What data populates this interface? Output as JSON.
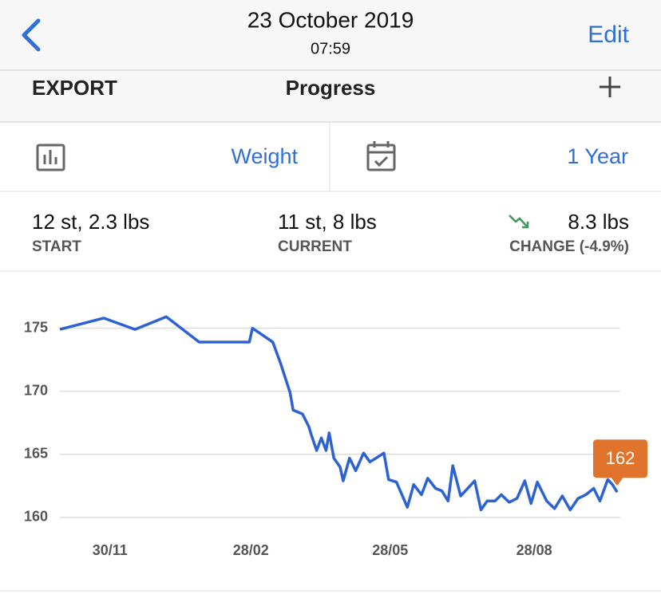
{
  "header": {
    "date": "23 October 2019",
    "time": "07:59",
    "edit": "Edit"
  },
  "toolbar": {
    "export": "EXPORT",
    "title": "Progress"
  },
  "selectors": {
    "metric": "Weight",
    "period": "1 Year"
  },
  "stats": [
    {
      "value": "12 st, 2.3 lbs",
      "label": "START"
    },
    {
      "value": "11 st, 8 lbs",
      "label": "CURRENT"
    },
    {
      "value": "8.3 lbs",
      "label": "CHANGE (-4.9%)"
    }
  ],
  "chart_data": {
    "type": "line",
    "x": [
      "29/10",
      "26/11",
      "16/12",
      "05/01",
      "26/01",
      "27/02",
      "01/03",
      "14/03",
      "19/03",
      "25/03",
      "27/03",
      "02/04",
      "06/04",
      "08/04",
      "11/04",
      "14/04",
      "17/04",
      "19/04",
      "22/04",
      "26/04",
      "28/04",
      "02/05",
      "06/05",
      "11/05",
      "15/05",
      "19/05",
      "24/05",
      "27/05",
      "01/06",
      "08/06",
      "12/06",
      "17/06",
      "21/06",
      "26/06",
      "30/06",
      "04/07",
      "07/07",
      "12/07",
      "18/07",
      "21/07",
      "25/07",
      "29/07",
      "03/08",
      "07/08",
      "12/08",
      "17/08",
      "22/08",
      "26/08",
      "30/08",
      "05/09",
      "10/09",
      "15/09",
      "20/09",
      "25/09",
      "30/09",
      "05/10",
      "09/10",
      "14/10",
      "17/10",
      "20/10"
    ],
    "series": [
      {
        "color": "#2d62d2",
        "values": [
          174.9,
          175.8,
          174.9,
          175.9,
          173.9,
          173.9,
          175,
          173.9,
          172.2,
          169.9,
          168.5,
          168.2,
          167.2,
          166.4,
          165.3,
          166.3,
          165.3,
          166.7,
          164.7,
          164,
          162.9,
          164.7,
          163.7,
          165.1,
          164.4,
          164.7,
          165.1,
          163,
          162.8,
          160.8,
          162.6,
          161.8,
          163.1,
          162.3,
          162.1,
          161.3,
          164.1,
          161.7,
          162.5,
          162.9,
          160.6,
          161.3,
          161.3,
          161.8,
          161.2,
          161.5,
          162.9,
          161.1,
          162.8,
          161.3,
          160.7,
          161.7,
          160.6,
          161.5,
          161.8,
          162.3,
          161.3,
          163,
          162.6,
          162
        ]
      }
    ],
    "xlim": [
      "29/10",
      "22/10"
    ],
    "xticks": [
      "30/11",
      "28/02",
      "28/05",
      "28/08"
    ],
    "ylim": [
      158.6,
      177.5
    ],
    "yticks": [
      160,
      165,
      170,
      175
    ],
    "grid": true,
    "label_color": "#e0742c"
  }
}
